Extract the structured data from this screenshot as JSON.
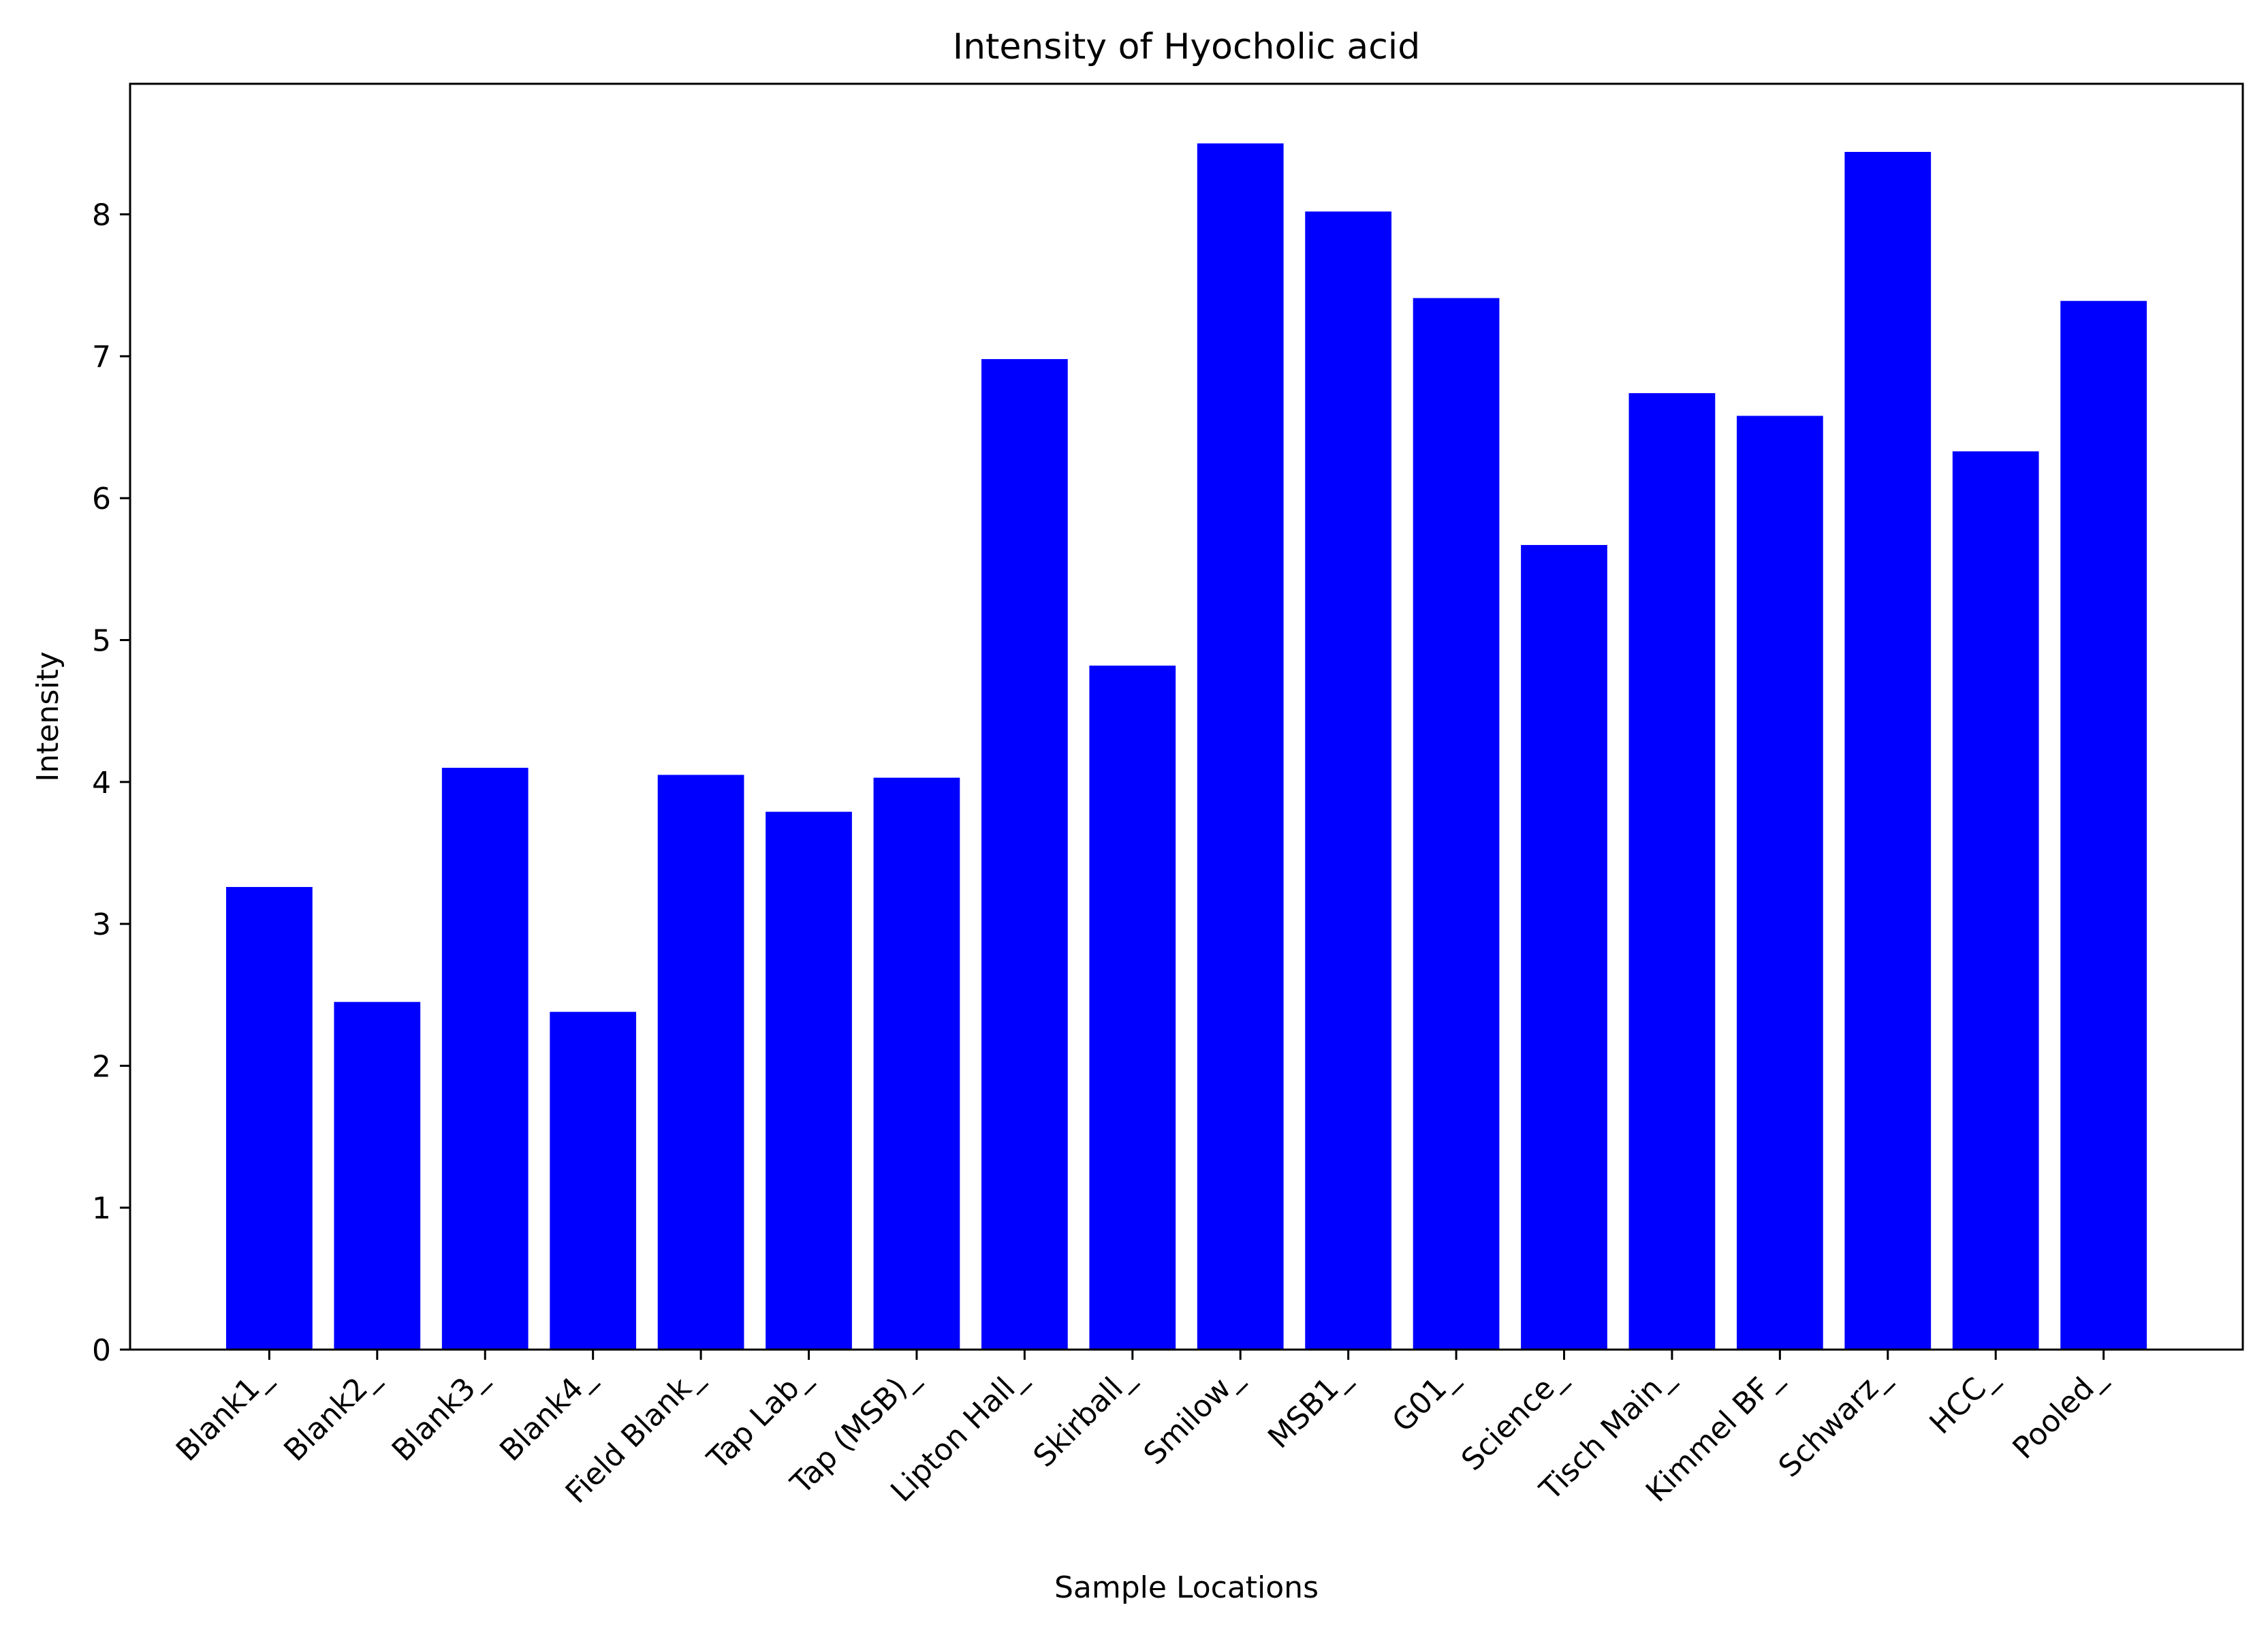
{
  "colors": {
    "bar": "#0000ff",
    "axis": "#000000",
    "background": "#ffffff"
  },
  "chart_data": {
    "type": "bar",
    "title": "Intensity of Hyocholic acid",
    "xlabel": "Sample Locations",
    "ylabel": "Intensity",
    "ylim": [
      0,
      8.92
    ],
    "yticks": [
      0,
      1,
      2,
      3,
      4,
      5,
      6,
      7,
      8
    ],
    "ytick_labels": [
      "0",
      "1",
      "2",
      "3",
      "4",
      "5",
      "6",
      "7",
      "8"
    ],
    "grid": false,
    "legend": "none",
    "categories": [
      "Blank1_",
      "Blank2_",
      "Blank3_",
      "Blank4_",
      "Field Blank_",
      "Tap Lab_",
      "Tap (MSB)_",
      "Lipton Hall_",
      "Skirball_",
      "Smilow_",
      "MSB1_",
      "G01_",
      "Science_",
      "Tisch Main_",
      "Kimmel BF_",
      "Schwarz_",
      "HCC_",
      "Pooled_"
    ],
    "values": [
      3.26,
      2.45,
      4.1,
      2.38,
      4.05,
      3.79,
      4.03,
      6.98,
      4.82,
      8.5,
      8.02,
      7.41,
      5.67,
      6.74,
      6.58,
      8.44,
      6.33,
      7.39
    ]
  }
}
